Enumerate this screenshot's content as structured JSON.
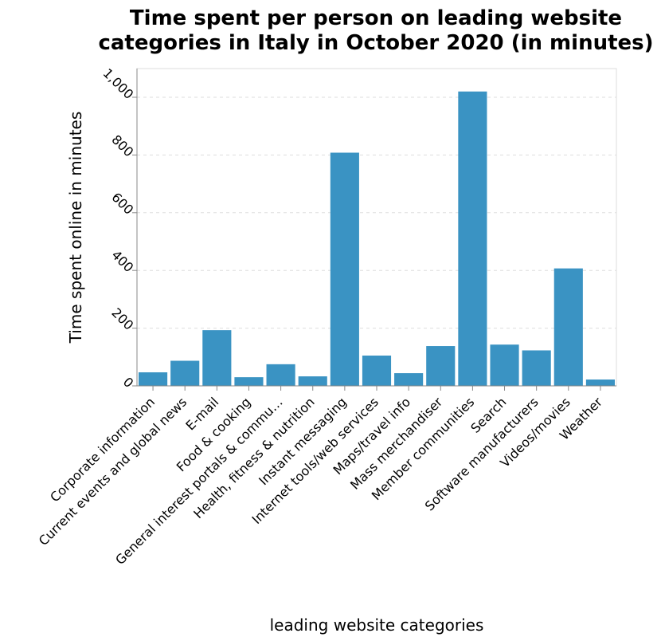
{
  "chart_data": {
    "type": "bar",
    "title": [
      "Time spent per person on leading website",
      "categories in Italy in October 2020 (in minutes)"
    ],
    "xlabel": "leading website categories",
    "ylabel": "Time spent online in minutes",
    "ylim": [
      0,
      1000
    ],
    "yticks": [
      0,
      200,
      400,
      600,
      800,
      1000
    ],
    "ytick_labels": [
      "0",
      "200",
      "400",
      "600",
      "800",
      "1,000"
    ],
    "grid": true,
    "bar_color": "#3a93c3",
    "categories": [
      "Corporate information",
      "Current events and global news",
      "E-mail",
      "Food & cooking",
      "General interest portals & commu…",
      "Health, fitness & nutrition",
      "Instant messaging",
      "Internet tools/web services",
      "Maps/travel info",
      "Mass merchandiser",
      "Member communities",
      "Search",
      "Software manufacturers",
      "Videos/movies",
      "Weather"
    ],
    "values": [
      47,
      87,
      193,
      30,
      75,
      33,
      808,
      105,
      44,
      138,
      1020,
      143,
      123,
      407,
      22
    ]
  }
}
